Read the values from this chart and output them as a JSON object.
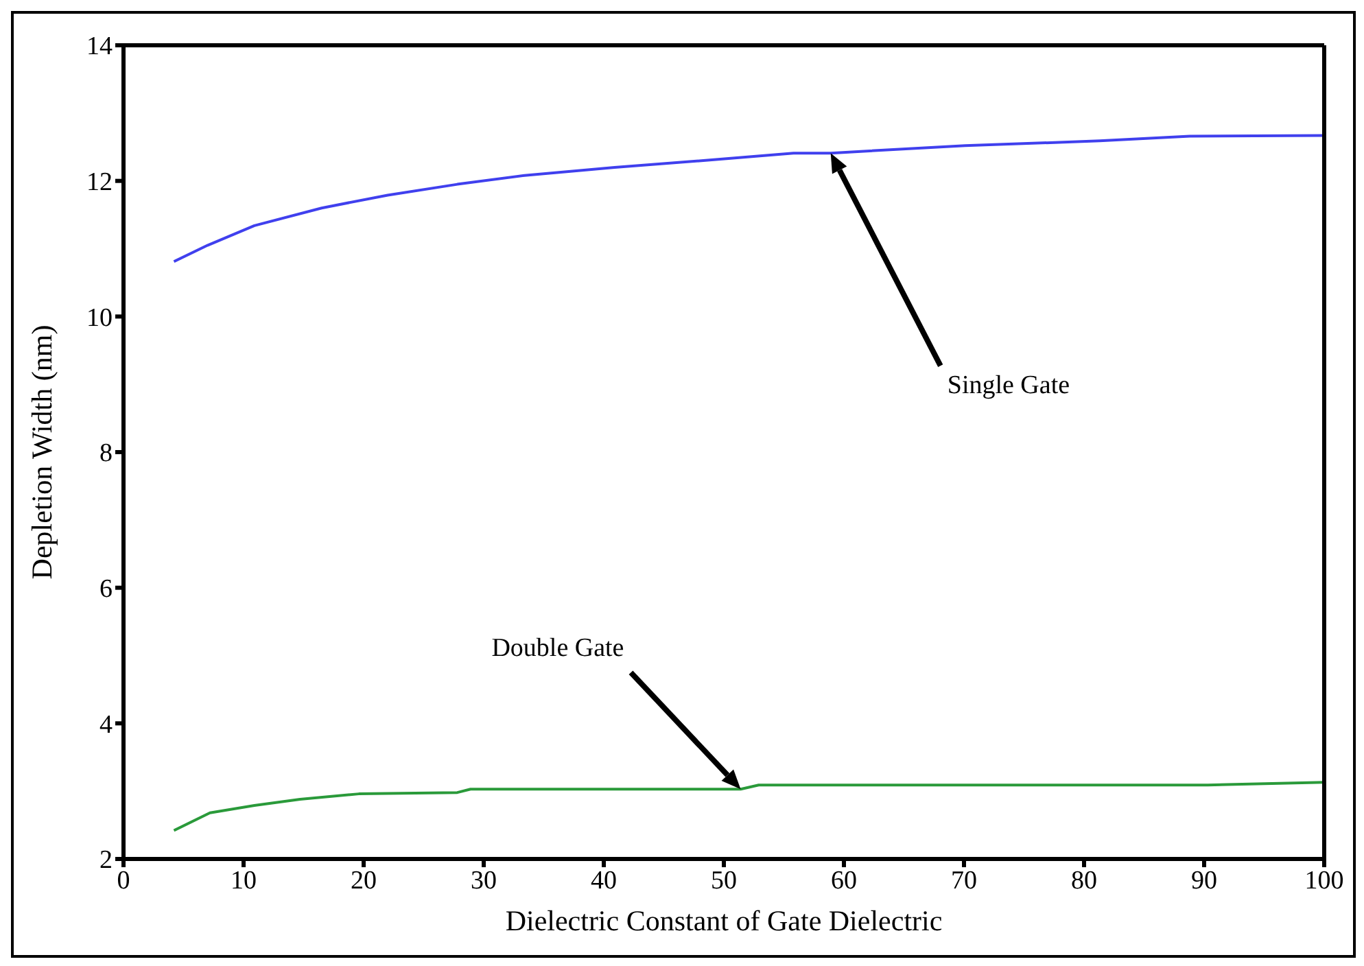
{
  "chart_data": {
    "type": "line",
    "xlabel": "Dielectric Constant of Gate Dielectric",
    "ylabel": "Depletion Width (nm)",
    "xlim": [
      0,
      100
    ],
    "xticks": [
      0,
      10,
      20,
      30,
      40,
      50,
      60,
      70,
      80,
      90,
      100
    ],
    "ylim": [
      2,
      14
    ],
    "yticks": [
      2,
      4,
      6,
      8,
      10,
      12,
      14
    ],
    "marker": "none",
    "line_style": "solid",
    "series": [
      {
        "color": "#4040ee",
        "x": [
          4.2,
          7,
          10.9,
          16.5,
          22,
          27.8,
          33.4,
          40.9,
          48.3,
          55.8,
          58.9,
          70.1,
          81.3,
          88.8,
          100
        ],
        "values": [
          10.81,
          11.05,
          11.34,
          11.6,
          11.79,
          11.95,
          12.08,
          12.2,
          12.3,
          12.41,
          12.41,
          12.52,
          12.59,
          12.66,
          12.67
        ]
      },
      {
        "color": "#2a9a3a",
        "x": [
          4.2,
          7.2,
          10.9,
          14.7,
          19.6,
          27.8,
          28.9,
          51.4,
          52.9,
          90.3,
          100
        ],
        "values": [
          2.42,
          2.68,
          2.79,
          2.88,
          2.96,
          2.98,
          3.03,
          3.03,
          3.09,
          3.09,
          3.13
        ]
      }
    ],
    "annotations": [
      "Single Gate",
      "Double Gate"
    ]
  }
}
